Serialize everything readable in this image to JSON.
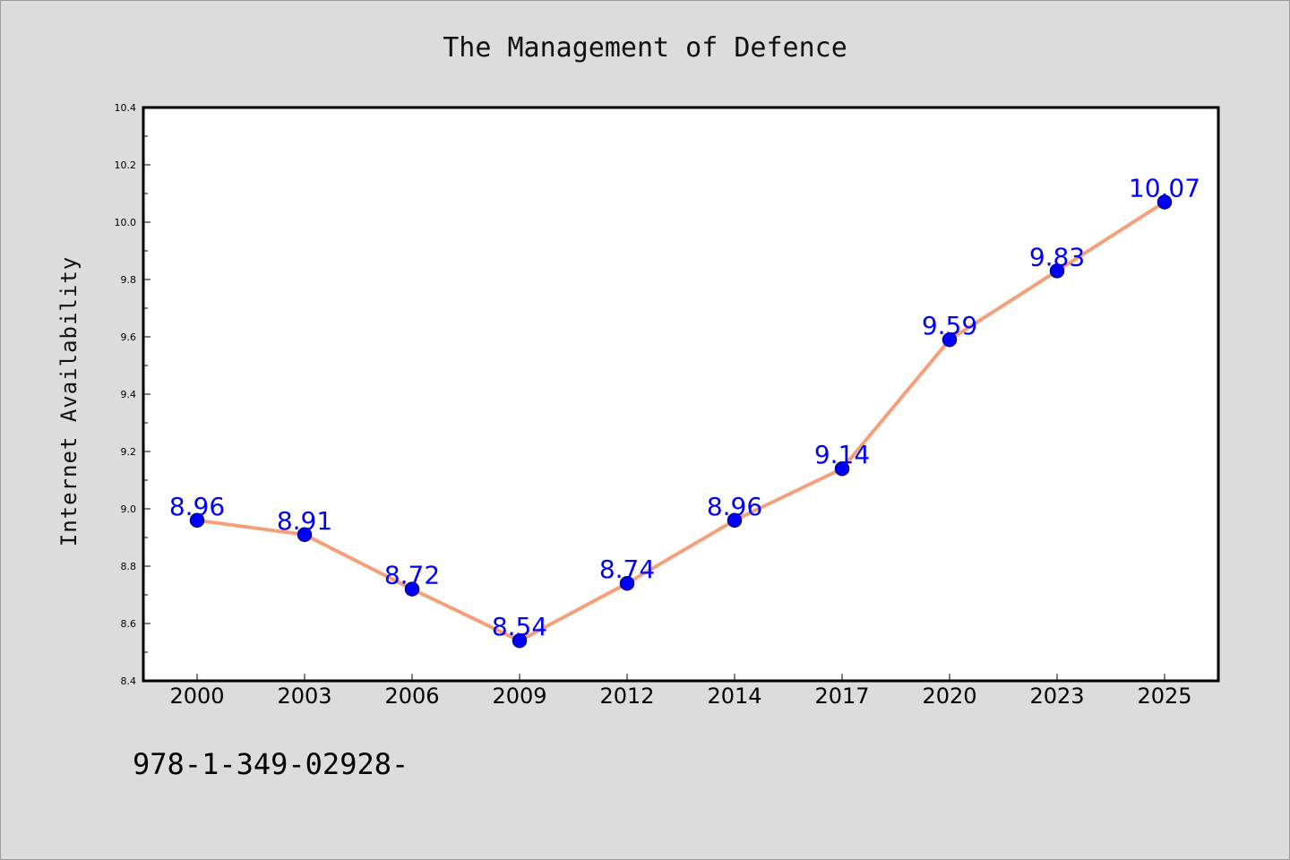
{
  "chart_data": {
    "type": "line",
    "title": "The Management of Defence",
    "xlabel": "",
    "ylabel": "Internet Availability",
    "categories": [
      "2000",
      "2003",
      "2006",
      "2009",
      "2012",
      "2014",
      "2017",
      "2020",
      "2023",
      "2025"
    ],
    "series": [
      {
        "values": [
          8.96,
          8.91,
          8.72,
          8.54,
          8.74,
          8.96,
          9.14,
          9.59,
          9.83,
          10.07
        ]
      }
    ],
    "data_labels": [
      "8.96",
      "8.91",
      "8.72",
      "8.54",
      "8.74",
      "8.96",
      "9.14",
      "9.59",
      "9.83",
      "10.07"
    ],
    "ylim": [
      8.4,
      10.4
    ],
    "yticks": [
      "8.4",
      "8.6",
      "8.8",
      "9.0",
      "9.2",
      "9.4",
      "9.6",
      "9.8",
      "10.0",
      "10.2",
      "10.4"
    ],
    "grid": false,
    "legend": "none",
    "colors": {
      "line": "#f4a07a",
      "marker": "#0000ff",
      "marker_edge": "#00008b",
      "data_label": "#0000ff",
      "background": "#dcdcdc",
      "plot_background": "#ffffff"
    }
  },
  "footer": {
    "isbn": "978-1-349-02928-"
  }
}
